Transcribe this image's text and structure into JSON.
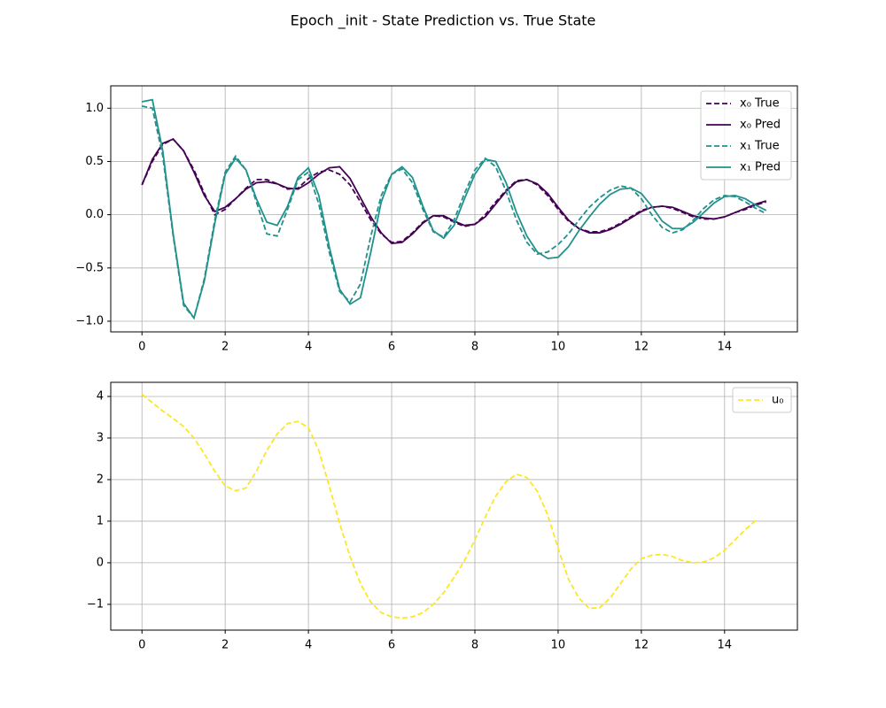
{
  "title": "Epoch _init - State Prediction vs. True State",
  "chart_data": [
    {
      "type": "line",
      "x": [
        0,
        0.25,
        0.5,
        0.75,
        1,
        1.25,
        1.5,
        1.75,
        2,
        2.25,
        2.5,
        2.75,
        3,
        3.25,
        3.5,
        3.75,
        4,
        4.25,
        4.5,
        4.75,
        5,
        5.25,
        5.5,
        5.75,
        6,
        6.25,
        6.5,
        6.75,
        7,
        7.25,
        7.5,
        7.75,
        8,
        8.25,
        8.5,
        8.75,
        9,
        9.25,
        9.5,
        9.75,
        10,
        10.25,
        10.5,
        10.75,
        11,
        11.25,
        11.5,
        11.75,
        12,
        12.25,
        12.5,
        12.75,
        13,
        13.25,
        13.5,
        13.75,
        14,
        14.25,
        14.5,
        14.75,
        15
      ],
      "series": [
        {
          "name": "x₀ True",
          "color": "#440154",
          "linestyle": "dashed",
          "values": [
            0.28,
            0.5,
            0.66,
            0.71,
            0.6,
            0.42,
            0.2,
            0.0,
            0.05,
            0.15,
            0.25,
            0.33,
            0.33,
            0.29,
            0.24,
            0.25,
            0.34,
            0.4,
            0.42,
            0.38,
            0.28,
            0.12,
            -0.05,
            -0.18,
            -0.26,
            -0.25,
            -0.17,
            -0.07,
            -0.01,
            -0.02,
            -0.07,
            -0.11,
            -0.09,
            0.0,
            0.12,
            0.23,
            0.32,
            0.33,
            0.28,
            0.18,
            0.05,
            -0.06,
            -0.13,
            -0.16,
            -0.16,
            -0.13,
            -0.08,
            -0.02,
            0.04,
            0.07,
            0.08,
            0.06,
            0.02,
            -0.02,
            -0.04,
            -0.04,
            -0.02,
            0.02,
            0.05,
            0.09,
            0.12
          ]
        },
        {
          "name": "x₀ Pred",
          "color": "#440154",
          "linestyle": "solid",
          "values": [
            0.28,
            0.52,
            0.67,
            0.71,
            0.6,
            0.4,
            0.18,
            0.03,
            0.07,
            0.15,
            0.24,
            0.3,
            0.31,
            0.29,
            0.25,
            0.24,
            0.3,
            0.38,
            0.44,
            0.45,
            0.34,
            0.16,
            -0.02,
            -0.17,
            -0.27,
            -0.26,
            -0.18,
            -0.08,
            -0.01,
            -0.01,
            -0.06,
            -0.1,
            -0.09,
            -0.02,
            0.1,
            0.22,
            0.31,
            0.33,
            0.29,
            0.2,
            0.07,
            -0.05,
            -0.13,
            -0.17,
            -0.17,
            -0.14,
            -0.09,
            -0.03,
            0.03,
            0.07,
            0.08,
            0.07,
            0.03,
            -0.01,
            -0.03,
            -0.04,
            -0.02,
            0.02,
            0.06,
            0.1,
            0.13
          ]
        },
        {
          "name": "x₁ True",
          "color": "#21918c",
          "linestyle": "dashed",
          "values": [
            1.02,
            1.0,
            0.55,
            -0.2,
            -0.85,
            -0.97,
            -0.6,
            -0.05,
            0.4,
            0.55,
            0.42,
            0.12,
            -0.18,
            -0.2,
            0.05,
            0.33,
            0.4,
            0.1,
            -0.35,
            -0.72,
            -0.82,
            -0.65,
            -0.2,
            0.18,
            0.38,
            0.43,
            0.3,
            0.05,
            -0.16,
            -0.21,
            -0.05,
            0.2,
            0.42,
            0.53,
            0.45,
            0.22,
            -0.05,
            -0.26,
            -0.37,
            -0.35,
            -0.28,
            -0.18,
            -0.05,
            0.07,
            0.16,
            0.23,
            0.27,
            0.25,
            0.15,
            0.0,
            -0.12,
            -0.17,
            -0.14,
            -0.05,
            0.06,
            0.14,
            0.18,
            0.17,
            0.12,
            0.06,
            0.01
          ]
        },
        {
          "name": "x₁ Pred",
          "color": "#21918c",
          "linestyle": "solid",
          "values": [
            1.06,
            1.08,
            0.6,
            -0.18,
            -0.83,
            -0.97,
            -0.62,
            -0.08,
            0.38,
            0.53,
            0.42,
            0.15,
            -0.07,
            -0.1,
            0.08,
            0.35,
            0.44,
            0.18,
            -0.3,
            -0.7,
            -0.84,
            -0.78,
            -0.35,
            0.12,
            0.38,
            0.45,
            0.35,
            0.08,
            -0.15,
            -0.22,
            -0.1,
            0.15,
            0.38,
            0.52,
            0.5,
            0.3,
            0.02,
            -0.2,
            -0.35,
            -0.41,
            -0.4,
            -0.3,
            -0.15,
            -0.02,
            0.1,
            0.19,
            0.24,
            0.25,
            0.2,
            0.08,
            -0.06,
            -0.13,
            -0.13,
            -0.07,
            0.02,
            0.11,
            0.17,
            0.18,
            0.15,
            0.09,
            0.04
          ]
        }
      ],
      "xlim": [
        -0.75,
        15.75
      ],
      "xticks": [
        0,
        2,
        4,
        6,
        8,
        10,
        12,
        14
      ],
      "ylim": [
        -1.1,
        1.21
      ],
      "yticks": [
        {
          "value": -1,
          "label": "−1.0"
        },
        {
          "value": -0.5,
          "label": "−0.5"
        },
        {
          "value": 0,
          "label": "0.0"
        },
        0.5,
        {
          "value": 1,
          "label": "1.0"
        }
      ],
      "grid": true,
      "legend": "upper right"
    },
    {
      "type": "line",
      "x": [
        0,
        0.25,
        0.5,
        0.75,
        1,
        1.25,
        1.5,
        1.75,
        2,
        2.25,
        2.5,
        2.75,
        3,
        3.25,
        3.5,
        3.75,
        4,
        4.25,
        4.5,
        4.75,
        5,
        5.25,
        5.5,
        5.75,
        6,
        6.25,
        6.5,
        6.75,
        7,
        7.25,
        7.5,
        7.75,
        8,
        8.25,
        8.5,
        8.75,
        9,
        9.25,
        9.5,
        9.75,
        10,
        10.25,
        10.5,
        10.75,
        11,
        11.25,
        11.5,
        11.75,
        12,
        12.25,
        12.5,
        12.75,
        13,
        13.25,
        13.5,
        13.75,
        14,
        14.25,
        14.5,
        14.75
      ],
      "series": [
        {
          "name": "u₀",
          "color": "#fde725",
          "linestyle": "dashed",
          "values": [
            4.05,
            3.85,
            3.65,
            3.47,
            3.28,
            3.0,
            2.62,
            2.2,
            1.85,
            1.73,
            1.8,
            2.2,
            2.7,
            3.1,
            3.35,
            3.4,
            3.25,
            2.7,
            1.85,
            0.95,
            0.15,
            -0.5,
            -0.95,
            -1.2,
            -1.3,
            -1.33,
            -1.3,
            -1.2,
            -1.0,
            -0.72,
            -0.35,
            0.05,
            0.55,
            1.1,
            1.6,
            1.95,
            2.13,
            2.05,
            1.72,
            1.15,
            0.35,
            -0.4,
            -0.85,
            -1.1,
            -1.08,
            -0.85,
            -0.5,
            -0.15,
            0.1,
            0.18,
            0.2,
            0.15,
            0.05,
            0.0,
            0.02,
            0.12,
            0.3,
            0.55,
            0.8,
            1.02
          ]
        }
      ],
      "xlim": [
        -0.75,
        15.75
      ],
      "xticks": [
        0,
        2,
        4,
        6,
        8,
        10,
        12,
        14
      ],
      "ylim": [
        -1.62,
        4.34
      ],
      "yticks": [
        {
          "value": -1,
          "label": "−1"
        },
        0,
        1,
        2,
        3,
        4
      ],
      "grid": true,
      "legend": "upper right"
    }
  ]
}
